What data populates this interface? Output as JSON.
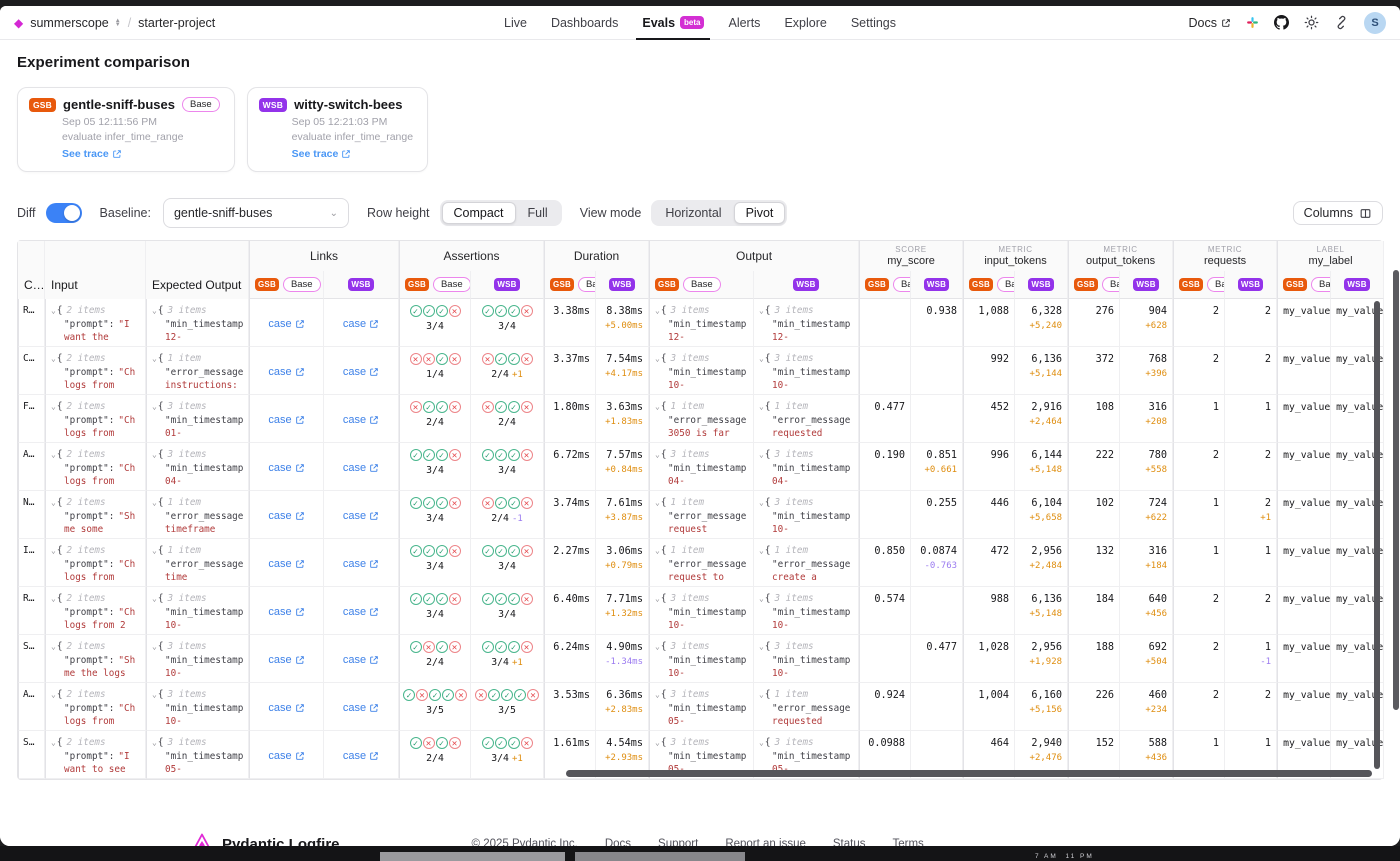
{
  "nav": {
    "org": "summerscope",
    "project": "starter-project",
    "tabs": [
      "Live",
      "Dashboards",
      "Evals",
      "Alerts",
      "Explore",
      "Settings"
    ],
    "active_tab": "Evals",
    "beta": "beta",
    "docs": "Docs",
    "avatar": "S"
  },
  "page": {
    "title": "Experiment comparison"
  },
  "experiments": {
    "0": {
      "abbr": "GSB",
      "name": "gentle-sniff-buses",
      "base_label": "Base",
      "timestamp": "Sep 05 12:11:56 PM",
      "task": "evaluate infer_time_range",
      "trace_label": "See trace",
      "color": "#e8590c"
    },
    "1": {
      "abbr": "WSB",
      "name": "witty-switch-bees",
      "timestamp": "Sep 05 12:21:03 PM",
      "task": "evaluate infer_time_range",
      "trace_label": "See trace",
      "color": "#9333ea"
    }
  },
  "controls": {
    "diff_label": "Diff",
    "diff_on": true,
    "baseline_label": "Baseline:",
    "baseline_value": "gentle-sniff-buses",
    "row_height_label": "Row height",
    "row_height_options": {
      "0": "Compact",
      "1": "Full"
    },
    "row_height_selected": "Compact",
    "view_mode_label": "View mode",
    "view_mode_options": {
      "0": "Horizontal",
      "1": "Pivot"
    },
    "view_mode_selected": "Pivot",
    "columns_button": "Columns"
  },
  "table": {
    "headers": {
      "case": "C…",
      "input": "Input",
      "expected": "Expected Output"
    },
    "groups": {
      "links": "Links",
      "assertions": "Assertions",
      "duration": "Duration",
      "output": "Output"
    },
    "scored": {
      "score": {
        "kicker": "SCORE",
        "name": "my_score"
      },
      "input_tokens": {
        "kicker": "METRIC",
        "name": "input_tokens"
      },
      "output_tokens": {
        "kicker": "METRIC",
        "name": "output_tokens"
      },
      "requests": {
        "kicker": "METRIC",
        "name": "requests"
      },
      "label": {
        "kicker": "LABEL",
        "name": "my_label"
      }
    },
    "badges": {
      "gsb": "GSB",
      "wsb": "WSB",
      "base": "Base"
    },
    "links_label": "case",
    "rows": [
      {
        "case": "R…",
        "input": {
          "count": "2 items",
          "key": "\"prompt\":",
          "val1": "\"I",
          "val2": "want the"
        },
        "expected": {
          "count": "3 items",
          "key": "\"min_timestamp",
          "val1": "",
          "val2": "12-"
        },
        "assertions": {
          "gsb": {
            "icons": "cccx",
            "score": "3/4",
            "diff": ""
          },
          "wsb": {
            "icons": "cccx",
            "score": "3/4",
            "diff": ""
          }
        },
        "duration": {
          "gsb": "3.38ms",
          "wsb": "8.38ms",
          "diff": "+5.00ms"
        },
        "output": {
          "gsb": {
            "count": "3 items",
            "key": "\"min_timestamp",
            "val1": "",
            "val2": "12-"
          },
          "wsb": {
            "count": "3 items",
            "key": "\"min_timestamp",
            "val1": "",
            "val2": "12-"
          }
        },
        "score": {
          "gsb": "",
          "wsb": "0.938",
          "diff": ""
        },
        "input_tokens": {
          "gsb": "1,088",
          "wsb": "6,328",
          "diff": "+5,240"
        },
        "output_tokens": {
          "gsb": "276",
          "wsb": "904",
          "diff": "+628"
        },
        "requests": {
          "gsb": "2",
          "wsb": "2",
          "diff": ""
        },
        "label": {
          "gsb": "my_value_",
          "wsb": "my_value_"
        }
      },
      {
        "case": "C…",
        "input": {
          "count": "2 items",
          "key": "\"prompt\":",
          "val1": "\"Ch",
          "val2": "logs from"
        },
        "expected": {
          "count": "1 item",
          "key": "\"error_message",
          "val1": "",
          "val2": "instructions:"
        },
        "assertions": {
          "gsb": {
            "icons": "xxcx",
            "score": "1/4",
            "diff": ""
          },
          "wsb": {
            "icons": "xccx",
            "score": "2/4",
            "diff": "+1"
          }
        },
        "duration": {
          "gsb": "3.37ms",
          "wsb": "7.54ms",
          "diff": "+4.17ms"
        },
        "output": {
          "gsb": {
            "count": "3 items",
            "key": "\"min_timestamp",
            "val1": "",
            "val2": "10-"
          },
          "wsb": {
            "count": "3 items",
            "key": "\"min_timestamp",
            "val1": "",
            "val2": "10-"
          }
        },
        "score": {
          "gsb": "",
          "wsb": "",
          "diff": ""
        },
        "input_tokens": {
          "gsb": "992",
          "wsb": "6,136",
          "diff": "+5,144"
        },
        "output_tokens": {
          "gsb": "372",
          "wsb": "768",
          "diff": "+396"
        },
        "requests": {
          "gsb": "2",
          "wsb": "2",
          "diff": ""
        },
        "label": {
          "gsb": "my_value_",
          "wsb": "my_value_"
        }
      },
      {
        "case": "F…",
        "input": {
          "count": "2 items",
          "key": "\"prompt\":",
          "val1": "\"Ch",
          "val2": "logs from"
        },
        "expected": {
          "count": "3 items",
          "key": "\"min_timestamp",
          "val1": "",
          "val2": "01-"
        },
        "assertions": {
          "gsb": {
            "icons": "xccx",
            "score": "2/4",
            "diff": ""
          },
          "wsb": {
            "icons": "xccx",
            "score": "2/4",
            "diff": ""
          }
        },
        "duration": {
          "gsb": "1.80ms",
          "wsb": "3.63ms",
          "diff": "+1.83ms"
        },
        "output": {
          "gsb": {
            "count": "1 item",
            "key": "\"error_message",
            "val1": "",
            "val2": "3050 is far"
          },
          "wsb": {
            "count": "1 item",
            "key": "\"error_message",
            "val1": "",
            "val2": "requested"
          }
        },
        "score": {
          "gsb": "0.477",
          "wsb": "",
          "diff": ""
        },
        "input_tokens": {
          "gsb": "452",
          "wsb": "2,916",
          "diff": "+2,464"
        },
        "output_tokens": {
          "gsb": "108",
          "wsb": "316",
          "diff": "+208"
        },
        "requests": {
          "gsb": "1",
          "wsb": "1",
          "diff": ""
        },
        "label": {
          "gsb": "my_value_",
          "wsb": "my_value_"
        }
      },
      {
        "case": "A…",
        "input": {
          "count": "2 items",
          "key": "\"prompt\":",
          "val1": "\"Ch",
          "val2": "logs from"
        },
        "expected": {
          "count": "3 items",
          "key": "\"min_timestamp",
          "val1": "",
          "val2": "04-"
        },
        "assertions": {
          "gsb": {
            "icons": "cccx",
            "score": "3/4",
            "diff": ""
          },
          "wsb": {
            "icons": "cccx",
            "score": "3/4",
            "diff": ""
          }
        },
        "duration": {
          "gsb": "6.72ms",
          "wsb": "7.57ms",
          "diff": "+0.84ms"
        },
        "output": {
          "gsb": {
            "count": "3 items",
            "key": "\"min_timestamp",
            "val1": "",
            "val2": "04-"
          },
          "wsb": {
            "count": "3 items",
            "key": "\"min_timestamp",
            "val1": "",
            "val2": "04-"
          }
        },
        "score": {
          "gsb": "0.190",
          "wsb": "0.851",
          "diff": "+0.661"
        },
        "input_tokens": {
          "gsb": "996",
          "wsb": "6,144",
          "diff": "+5,148"
        },
        "output_tokens": {
          "gsb": "222",
          "wsb": "780",
          "diff": "+558"
        },
        "requests": {
          "gsb": "2",
          "wsb": "2",
          "diff": ""
        },
        "label": {
          "gsb": "my_value_",
          "wsb": "my_value_"
        }
      },
      {
        "case": "N…",
        "input": {
          "count": "2 items",
          "key": "\"prompt\":",
          "val1": "\"Sh",
          "val2": "me some"
        },
        "expected": {
          "count": "1 item",
          "key": "\"error_message",
          "val1": "",
          "val2": "timeframe"
        },
        "assertions": {
          "gsb": {
            "icons": "cccx",
            "score": "3/4",
            "diff": ""
          },
          "wsb": {
            "icons": "xccx",
            "score": "2/4",
            "diff": "-1"
          }
        },
        "duration": {
          "gsb": "3.74ms",
          "wsb": "7.61ms",
          "diff": "+3.87ms"
        },
        "output": {
          "gsb": {
            "count": "1 item",
            "key": "\"error_message",
            "val1": "",
            "val2": "request"
          },
          "wsb": {
            "count": "3 items",
            "key": "\"min_timestamp",
            "val1": "",
            "val2": "10-"
          }
        },
        "score": {
          "gsb": "",
          "wsb": "0.255",
          "diff": ""
        },
        "input_tokens": {
          "gsb": "446",
          "wsb": "6,104",
          "diff": "+5,658"
        },
        "output_tokens": {
          "gsb": "102",
          "wsb": "724",
          "diff": "+622"
        },
        "requests": {
          "gsb": "1",
          "wsb": "2",
          "diff": "+1"
        },
        "label": {
          "gsb": "my_value_",
          "wsb": "my_value_"
        }
      },
      {
        "case": "I…",
        "input": {
          "count": "2 items",
          "key": "\"prompt\":",
          "val1": "\"Ch",
          "val2": "logs from"
        },
        "expected": {
          "count": "1 item",
          "key": "\"error_message",
          "val1": "",
          "val2": "time"
        },
        "assertions": {
          "gsb": {
            "icons": "cccx",
            "score": "3/4",
            "diff": ""
          },
          "wsb": {
            "icons": "cccx",
            "score": "3/4",
            "diff": ""
          }
        },
        "duration": {
          "gsb": "2.27ms",
          "wsb": "3.06ms",
          "diff": "+0.79ms"
        },
        "output": {
          "gsb": {
            "count": "1 item",
            "key": "\"error_message",
            "val1": "",
            "val2": "request to"
          },
          "wsb": {
            "count": "1 item",
            "key": "\"error_message",
            "val1": "",
            "val2": "create a"
          }
        },
        "score": {
          "gsb": "0.850",
          "wsb": "0.0874",
          "diff": "-0.763"
        },
        "input_tokens": {
          "gsb": "472",
          "wsb": "2,956",
          "diff": "+2,484"
        },
        "output_tokens": {
          "gsb": "132",
          "wsb": "316",
          "diff": "+184"
        },
        "requests": {
          "gsb": "1",
          "wsb": "1",
          "diff": ""
        },
        "label": {
          "gsb": "my_value_",
          "wsb": "my_value_"
        }
      },
      {
        "case": "R…",
        "input": {
          "count": "2 items",
          "key": "\"prompt\":",
          "val1": "\"Ch",
          "val2": "logs from 2"
        },
        "expected": {
          "count": "3 items",
          "key": "\"min_timestamp",
          "val1": "",
          "val2": "10-"
        },
        "assertions": {
          "gsb": {
            "icons": "cccx",
            "score": "3/4",
            "diff": ""
          },
          "wsb": {
            "icons": "cccx",
            "score": "3/4",
            "diff": ""
          }
        },
        "duration": {
          "gsb": "6.40ms",
          "wsb": "7.71ms",
          "diff": "+1.32ms"
        },
        "output": {
          "gsb": {
            "count": "3 items",
            "key": "\"min_timestamp",
            "val1": "",
            "val2": "10-"
          },
          "wsb": {
            "count": "3 items",
            "key": "\"min_timestamp",
            "val1": "",
            "val2": "10-"
          }
        },
        "score": {
          "gsb": "0.574",
          "wsb": "",
          "diff": ""
        },
        "input_tokens": {
          "gsb": "988",
          "wsb": "6,136",
          "diff": "+5,148"
        },
        "output_tokens": {
          "gsb": "184",
          "wsb": "640",
          "diff": "+456"
        },
        "requests": {
          "gsb": "2",
          "wsb": "2",
          "diff": ""
        },
        "label": {
          "gsb": "my_value_",
          "wsb": "my_value_"
        }
      },
      {
        "case": "S…",
        "input": {
          "count": "2 items",
          "key": "\"prompt\":",
          "val1": "\"Sh",
          "val2": "me the logs"
        },
        "expected": {
          "count": "3 items",
          "key": "\"min_timestamp",
          "val1": "",
          "val2": "10-"
        },
        "assertions": {
          "gsb": {
            "icons": "cxcx",
            "score": "2/4",
            "diff": ""
          },
          "wsb": {
            "icons": "cccx",
            "score": "3/4",
            "diff": "+1"
          }
        },
        "duration": {
          "gsb": "6.24ms",
          "wsb": "4.90ms",
          "diff": "-1.34ms"
        },
        "output": {
          "gsb": {
            "count": "3 items",
            "key": "\"min_timestamp",
            "val1": "",
            "val2": "10-"
          },
          "wsb": {
            "count": "3 items",
            "key": "\"min_timestamp",
            "val1": "",
            "val2": "10-"
          }
        },
        "score": {
          "gsb": "",
          "wsb": "0.477",
          "diff": ""
        },
        "input_tokens": {
          "gsb": "1,028",
          "wsb": "2,956",
          "diff": "+1,928"
        },
        "output_tokens": {
          "gsb": "188",
          "wsb": "692",
          "diff": "+504"
        },
        "requests": {
          "gsb": "2",
          "wsb": "1",
          "diff": "-1"
        },
        "label": {
          "gsb": "my_value_",
          "wsb": "my_value_"
        }
      },
      {
        "case": "A…",
        "input": {
          "count": "2 items",
          "key": "\"prompt\":",
          "val1": "\"Ch",
          "val2": "logs from"
        },
        "expected": {
          "count": "3 items",
          "key": "\"min_timestamp",
          "val1": "",
          "val2": "10-"
        },
        "assertions": {
          "gsb": {
            "icons": "cxccx",
            "score": "3/5",
            "diff": ""
          },
          "wsb": {
            "icons": "xcccx",
            "score": "3/5",
            "diff": ""
          }
        },
        "duration": {
          "gsb": "3.53ms",
          "wsb": "6.36ms",
          "diff": "+2.83ms"
        },
        "output": {
          "gsb": {
            "count": "3 items",
            "key": "\"min_timestamp",
            "val1": "",
            "val2": "05-"
          },
          "wsb": {
            "count": "1 item",
            "key": "\"error_message",
            "val1": "",
            "val2": "requested"
          }
        },
        "score": {
          "gsb": "0.924",
          "wsb": "",
          "diff": ""
        },
        "input_tokens": {
          "gsb": "1,004",
          "wsb": "6,160",
          "diff": "+5,156"
        },
        "output_tokens": {
          "gsb": "226",
          "wsb": "460",
          "diff": "+234"
        },
        "requests": {
          "gsb": "2",
          "wsb": "2",
          "diff": ""
        },
        "label": {
          "gsb": "my_value_",
          "wsb": "my_value_"
        }
      },
      {
        "case": "S…",
        "input": {
          "count": "2 items",
          "key": "\"prompt\":",
          "val1": "\"I",
          "val2": "want to see"
        },
        "expected": {
          "count": "3 items",
          "key": "\"min_timestamp",
          "val1": "",
          "val2": "05-"
        },
        "assertions": {
          "gsb": {
            "icons": "cxcx",
            "score": "2/4",
            "diff": ""
          },
          "wsb": {
            "icons": "cccx",
            "score": "3/4",
            "diff": "+1"
          }
        },
        "duration": {
          "gsb": "1.61ms",
          "wsb": "4.54ms",
          "diff": "+2.93ms"
        },
        "output": {
          "gsb": {
            "count": "3 items",
            "key": "\"min_timestamp",
            "val1": "",
            "val2": "05-"
          },
          "wsb": {
            "count": "3 items",
            "key": "\"min_timestamp",
            "val1": "",
            "val2": "05-"
          }
        },
        "score": {
          "gsb": "0.0988",
          "wsb": "",
          "diff": ""
        },
        "input_tokens": {
          "gsb": "464",
          "wsb": "2,940",
          "diff": "+2,476"
        },
        "output_tokens": {
          "gsb": "152",
          "wsb": "588",
          "diff": "+436"
        },
        "requests": {
          "gsb": "1",
          "wsb": "1",
          "diff": ""
        },
        "label": {
          "gsb": "my_value_",
          "wsb": "my_value_"
        }
      }
    ]
  },
  "footer": {
    "brand": "Pydantic Logfire",
    "copyright": "© 2025 Pydantic Inc.",
    "links": {
      "0": "Docs",
      "1": "Support",
      "2": "Report an issue",
      "3": "Status",
      "4": "Terms"
    }
  },
  "taskbar": {
    "clock_left": "7 AM",
    "clock_right": "11 PM"
  },
  "colors": {
    "accent_magenta": "#d427d4",
    "gsb_orange": "#e8590c",
    "wsb_purple": "#9333ea",
    "diff_up": "#df8e10",
    "diff_down": "#9b7bf0",
    "link_blue": "#3f82e8",
    "pass_green": "#21996b",
    "fail_red": "#e5484d"
  }
}
